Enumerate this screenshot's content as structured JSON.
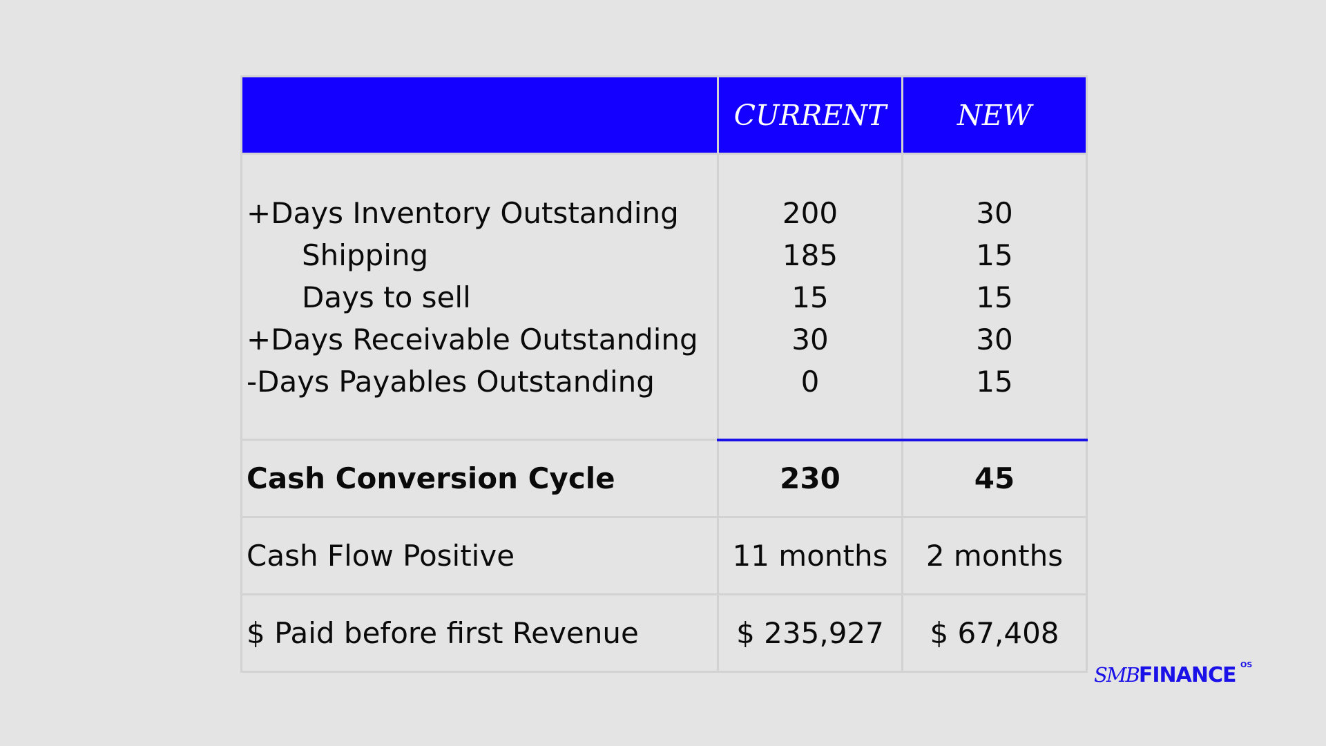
{
  "table": {
    "header": {
      "label": "",
      "current": "CURRENT",
      "new": "NEW"
    },
    "breakdown": [
      {
        "label": "+Days Inventory Outstanding",
        "current": "200",
        "new": "30",
        "indent": false
      },
      {
        "label": "Shipping",
        "current": "185",
        "new": "15",
        "indent": true
      },
      {
        "label": "Days to sell",
        "current": "15",
        "new": "15",
        "indent": true
      },
      {
        "label": "+Days Receivable Outstanding",
        "current": "30",
        "new": "30",
        "indent": false
      },
      {
        "label": "-Days Payables Outstanding",
        "current": "0",
        "new": "15",
        "indent": false
      }
    ],
    "summary": {
      "label": "Cash Conversion Cycle",
      "current": "230",
      "new": "45"
    },
    "cash_flow": {
      "label": "Cash Flow Positive",
      "current": "11 months",
      "new": "2 months"
    },
    "paid_before_revenue": {
      "label": "$ Paid before first Revenue",
      "current": "$ 235,927",
      "new": "$ 67,408"
    }
  },
  "logo": {
    "smb": "SMB",
    "finance": "FINANCE",
    "os": "OS"
  },
  "colors": {
    "accent": "#1400ff",
    "background": "#e4e4e4",
    "grid": "#d2d2d2"
  }
}
